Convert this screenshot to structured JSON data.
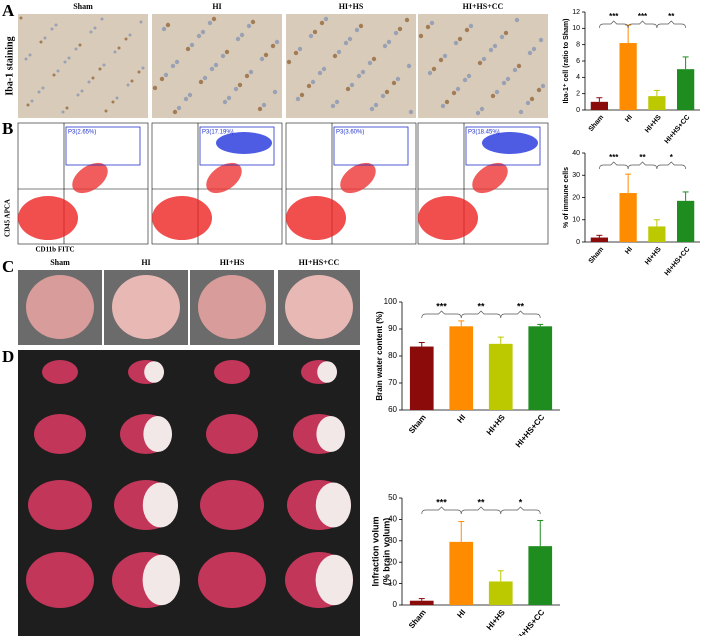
{
  "panels": [
    {
      "label": "A",
      "row_label": "Iba-1 staining",
      "captions": [
        "Sham",
        "HI",
        "HI+HS",
        "HI+HS+CC"
      ]
    },
    {
      "label": "B",
      "gates": [
        "P3(2.65%)",
        "P3(17.19%)",
        "P3(3.60%)",
        "P3(18.45%)"
      ],
      "y_axis_label": "CD45 APCA",
      "x_axis_label": "CD11b FITC"
    },
    {
      "label": "C",
      "captions": [
        "Sham",
        "HI",
        "HI+HS",
        "HI+HS+CC"
      ]
    },
    {
      "label": "D"
    }
  ],
  "chart_data": [
    {
      "type": "bar",
      "ylabel": "Iba-1⁺ cell (ratio to Sham)",
      "categories": [
        "Sham",
        "HI",
        "HI+HS",
        "HI+HS+CC"
      ],
      "values": [
        1.0,
        8.2,
        1.7,
        5.0
      ],
      "errors": [
        0.5,
        2.2,
        0.7,
        1.5
      ],
      "colors": [
        "#8b0a0a",
        "#ff8c00",
        "#bcc800",
        "#1e8c1e"
      ],
      "ylim": [
        0,
        12
      ],
      "yticks": [
        0,
        2,
        4,
        6,
        8,
        10,
        12
      ],
      "significance": [
        "***",
        "***",
        "**"
      ]
    },
    {
      "type": "bar",
      "ylabel": "% of immune cells",
      "categories": [
        "Sham",
        "HI",
        "HI+HS",
        "HI+HS+CC"
      ],
      "values": [
        2,
        22,
        7,
        18.5
      ],
      "errors": [
        1,
        8.5,
        3,
        4
      ],
      "colors": [
        "#8b0a0a",
        "#ff8c00",
        "#bcc800",
        "#1e8c1e"
      ],
      "ylim": [
        0,
        40
      ],
      "yticks": [
        0,
        10,
        20,
        30,
        40
      ],
      "significance": [
        "***",
        "**",
        "*"
      ]
    },
    {
      "type": "bar",
      "ylabel": "Brain water content (%)",
      "categories": [
        "Sham",
        "HI",
        "HI+HS",
        "HI+HS+CC"
      ],
      "values": [
        83.5,
        91,
        84.5,
        91
      ],
      "errors": [
        1.5,
        2,
        2.5,
        0.7
      ],
      "colors": [
        "#8b0a0a",
        "#ff8c00",
        "#bcc800",
        "#1e8c1e"
      ],
      "ylim": [
        60,
        100
      ],
      "yticks": [
        60,
        70,
        80,
        90,
        100
      ],
      "significance": [
        "***",
        "**",
        "**"
      ]
    },
    {
      "type": "bar",
      "ylabel": [
        "Infraction volum",
        "(% brain volum)"
      ],
      "categories": [
        "Sham",
        "HI",
        "HI+HS",
        "HI+HS+CC"
      ],
      "values": [
        2,
        29.5,
        11,
        27.5
      ],
      "errors": [
        1,
        9.5,
        5,
        12
      ],
      "colors": [
        "#8b0a0a",
        "#ff8c00",
        "#bcc800",
        "#1e8c1e"
      ],
      "ylim": [
        0,
        50
      ],
      "yticks": [
        0,
        10,
        20,
        30,
        40,
        50
      ],
      "significance": [
        "***",
        "**",
        "*"
      ]
    }
  ]
}
